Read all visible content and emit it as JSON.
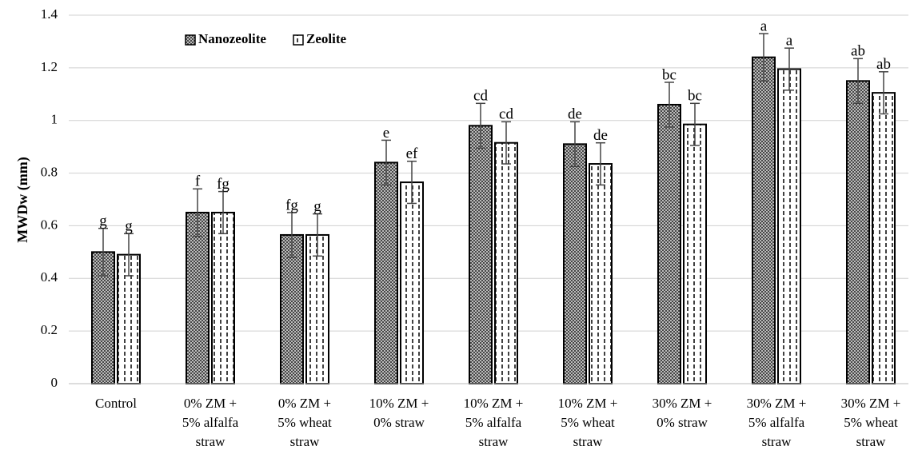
{
  "chart_data": {
    "type": "bar",
    "ylabel": "MWDw (mm)",
    "categories": [
      "Control",
      "0% ZM +\n5% alfalfa\nstraw",
      "0% ZM +\n5% wheat\nstraw",
      "10% ZM +\n0% straw",
      "10% ZM +\n5% alfalfa\nstraw",
      "10% ZM +\n5% wheat\nstraw",
      "30% ZM +\n0% straw",
      "30% ZM +\n5% alfalfa\nstraw",
      "30% ZM +\n5% wheat\nstraw"
    ],
    "series": [
      {
        "name": "Nanozeolite",
        "color": "#4d4d4d",
        "values": [
          0.5,
          0.65,
          0.565,
          0.84,
          0.98,
          0.91,
          1.06,
          1.24,
          1.15
        ],
        "errors": [
          0.09,
          0.09,
          0.085,
          0.085,
          0.085,
          0.085,
          0.085,
          0.09,
          0.085
        ],
        "letters": [
          "g",
          "f",
          "fg",
          "e",
          "cd",
          "de",
          "bc",
          "a",
          "ab"
        ]
      },
      {
        "name": "Zeolite",
        "color": "#ffffff",
        "values": [
          0.49,
          0.65,
          0.565,
          0.765,
          0.915,
          0.835,
          0.985,
          1.195,
          1.105
        ],
        "errors": [
          0.08,
          0.08,
          0.08,
          0.08,
          0.08,
          0.08,
          0.08,
          0.08,
          0.08
        ],
        "letters": [
          "g",
          "fg",
          "g",
          "ef",
          "cd",
          "de",
          "bc",
          "a",
          "ab"
        ]
      }
    ],
    "ylim": [
      0,
      1.4
    ],
    "yticks": [
      0,
      0.2,
      0.4,
      0.6,
      0.8,
      1,
      1.2,
      1.4
    ],
    "grid": true,
    "legend": "top-left"
  }
}
